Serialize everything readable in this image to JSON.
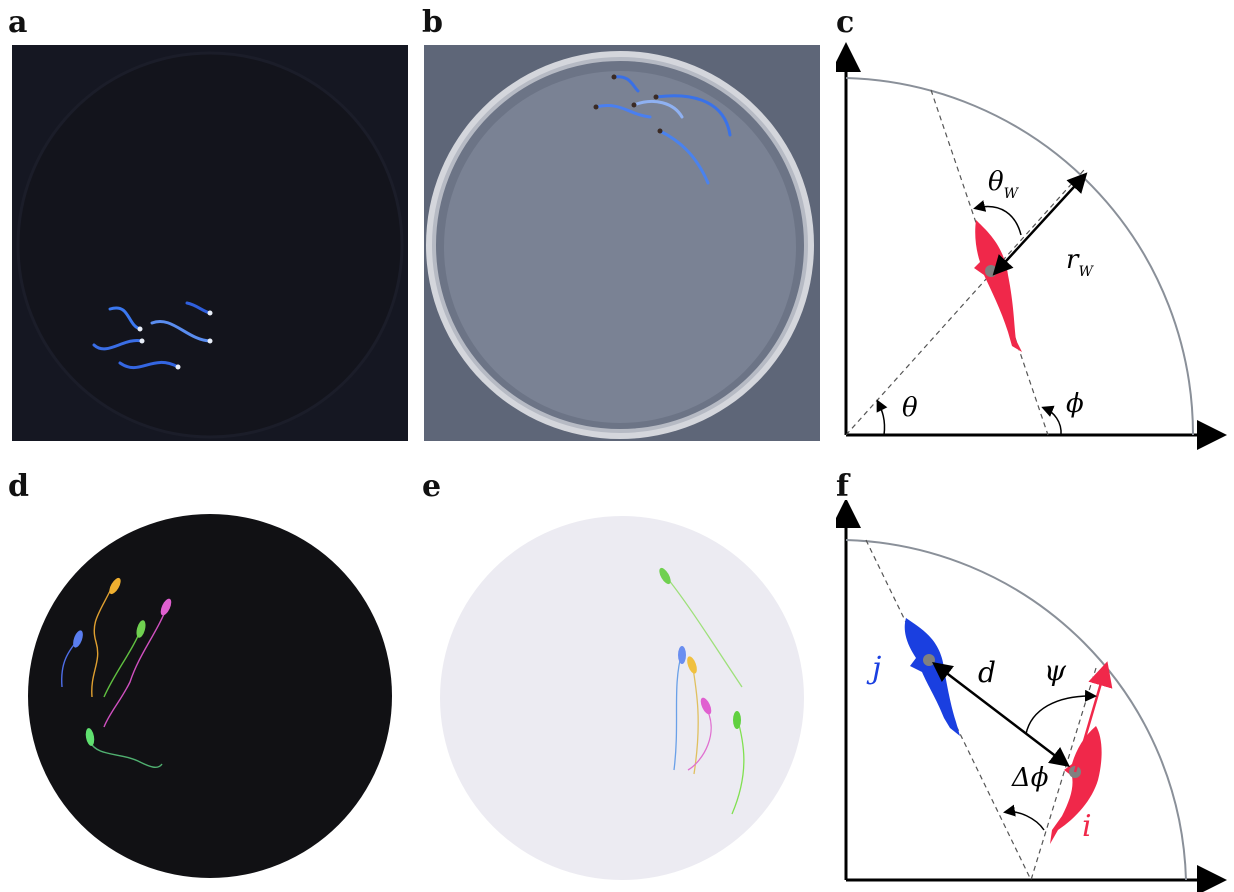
{
  "panels": {
    "a": {
      "label": "a"
    },
    "b": {
      "label": "b"
    },
    "c": {
      "label": "c",
      "symbols": {
        "theta_w": "θ",
        "theta_w_sub": "W",
        "r_w": "r",
        "r_w_sub": "W",
        "theta": "θ",
        "phi": "ϕ"
      }
    },
    "d": {
      "label": "d"
    },
    "e": {
      "label": "e"
    },
    "f": {
      "label": "f",
      "symbols": {
        "j": "j",
        "d": "d",
        "psi": "ψ",
        "delta_phi": "Δϕ",
        "i": "i"
      }
    }
  },
  "colors": {
    "fish_red": "#f0284a",
    "fish_blue": "#1a3fe0",
    "dark_arena": "#111114",
    "light_arena": "#ecebf2",
    "panel_a_bg": "#151722",
    "panel_b_bg": "#5e6678",
    "gray_dot": "#808080",
    "arc": "#8a9099"
  }
}
